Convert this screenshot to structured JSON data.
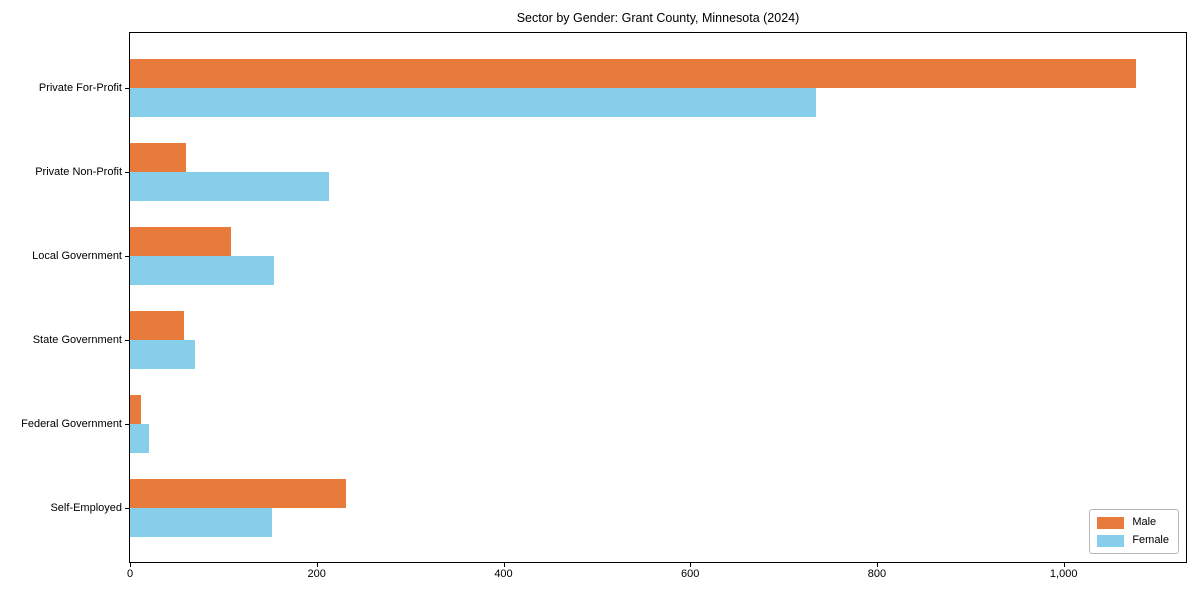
{
  "figure": {
    "background": "#ffffff",
    "text_color": "#000000"
  },
  "chart_data": {
    "type": "bar",
    "orientation": "horizontal",
    "title": "Sector by Gender: Grant County, Minnesota (2024)",
    "categories": [
      "Private For-Profit",
      "Private Non-Profit",
      "Local Government",
      "State Government",
      "Federal Government",
      "Self-Employed"
    ],
    "series": [
      {
        "name": "Male",
        "color": "#E87A3C",
        "values": [
          1077,
          60,
          108,
          58,
          12,
          231
        ]
      },
      {
        "name": "Female",
        "color": "#87CEEB",
        "values": [
          735,
          213,
          154,
          70,
          20,
          152
        ]
      }
    ],
    "xlabel": "",
    "ylabel": "",
    "xlim": [
      0,
      1131
    ],
    "xticks": [
      0,
      200,
      400,
      600,
      800,
      1000
    ],
    "xtick_labels": [
      "0",
      "200",
      "400",
      "600",
      "800",
      "1,000"
    ],
    "grid": false,
    "legend": {
      "position": "lower right",
      "entries": [
        "Male",
        "Female"
      ]
    }
  }
}
